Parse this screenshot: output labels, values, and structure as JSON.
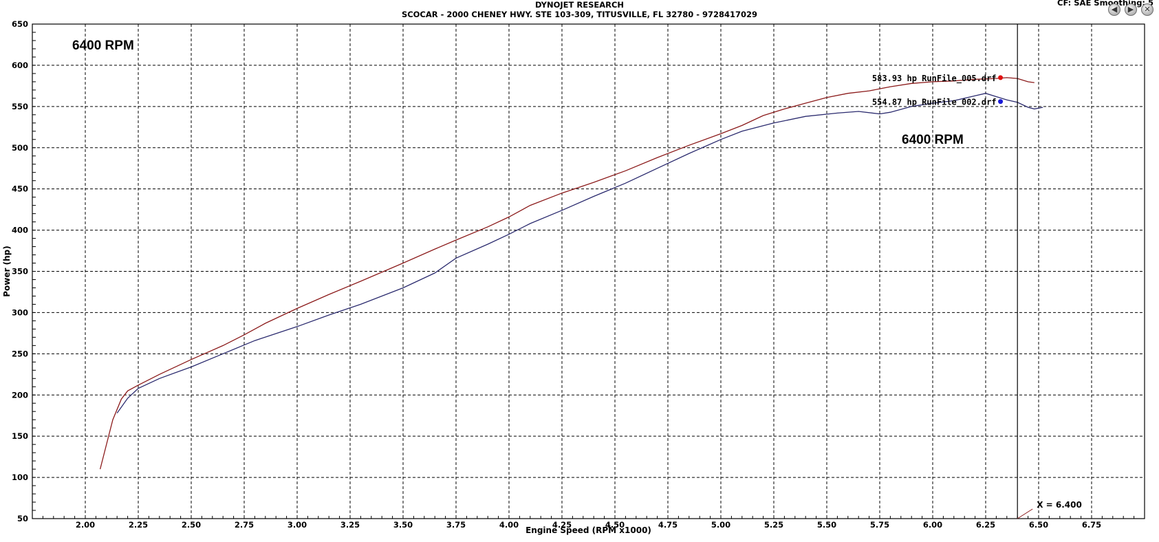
{
  "header": {
    "title": "DYNOJET RESEARCH",
    "subtitle": "SCOCAR - 2000 CHENEY HWY. STE 103-309, TITUSVILLE, FL 32780 - 9728417029",
    "cf_info": "CF: SAE  Smoothing: 5"
  },
  "nav": {
    "back_icon": "back-arrow-icon",
    "forward_icon": "forward-arrow-icon",
    "close_icon": "close-icon",
    "back_glyph": "◀",
    "forward_glyph": "▶",
    "close_glyph": "✕"
  },
  "chart_data": {
    "type": "line",
    "title": "DYNOJET RESEARCH",
    "subtitle": "SCOCAR - 2000 CHENEY HWY. STE 103-309, TITUSVILLE, FL 32780 - 9728417029",
    "xlabel": "Engine Speed (RPM x1000)",
    "ylabel": "Power (hp)",
    "xlim": [
      1.75,
      7.0
    ],
    "ylim": [
      50,
      650
    ],
    "grid": true,
    "x_ticks": [
      "2.00",
      "2.25",
      "2.50",
      "2.75",
      "3.00",
      "3.25",
      "3.50",
      "3.75",
      "4.00",
      "4.25",
      "4.50",
      "4.75",
      "5.00",
      "5.25",
      "5.50",
      "5.75",
      "6.00",
      "6.25",
      "6.50",
      "6.75"
    ],
    "x_tick_values": [
      2.0,
      2.25,
      2.5,
      2.75,
      3.0,
      3.25,
      3.5,
      3.75,
      4.0,
      4.25,
      4.5,
      4.75,
      5.0,
      5.25,
      5.5,
      5.75,
      6.0,
      6.25,
      6.5,
      6.75
    ],
    "y_ticks": [
      "650",
      "600",
      "550",
      "500",
      "450",
      "400",
      "350",
      "300",
      "250",
      "200",
      "150",
      "100",
      "50"
    ],
    "y_tick_values": [
      650,
      600,
      550,
      500,
      450,
      400,
      350,
      300,
      250,
      200,
      150,
      100,
      50
    ],
    "annotations": [
      {
        "text": "6400 RPM",
        "position": "top-left"
      },
      {
        "text": "6400 RPM",
        "position": "near-peak"
      }
    ],
    "cursor": {
      "x": 6.4,
      "label": "X = 6.400"
    },
    "series": [
      {
        "name": "RunFile_005.drf",
        "color": "#8b1a1a",
        "marker_color": "#e01010",
        "legend_label": "583.93 hp RunFile_005.drf",
        "marker_x": 6.32,
        "marker_y": 585,
        "x": [
          2.07,
          2.1,
          2.13,
          2.17,
          2.2,
          2.25,
          2.35,
          2.5,
          2.65,
          2.75,
          2.85,
          3.0,
          3.15,
          3.3,
          3.5,
          3.65,
          3.75,
          3.9,
          4.0,
          4.1,
          4.25,
          4.4,
          4.55,
          4.7,
          4.85,
          5.0,
          5.1,
          5.2,
          5.3,
          5.4,
          5.5,
          5.6,
          5.7,
          5.8,
          5.9,
          6.0,
          6.1,
          6.2,
          6.3,
          6.35,
          6.4,
          6.45,
          6.48
        ],
        "y": [
          110,
          140,
          170,
          195,
          205,
          212,
          225,
          243,
          260,
          273,
          287,
          305,
          322,
          338,
          360,
          377,
          388,
          404,
          416,
          430,
          445,
          458,
          472,
          488,
          503,
          517,
          527,
          539,
          547,
          554,
          561,
          566,
          569,
          574,
          578,
          580,
          581,
          583,
          584,
          585,
          584,
          580,
          579
        ]
      },
      {
        "name": "RunFile_002.drf",
        "color": "#2a2a6e",
        "marker_color": "#1a1ad8",
        "legend_label": "554.87 hp RunFile_002.drf",
        "marker_x": 6.32,
        "marker_y": 556,
        "x": [
          2.15,
          2.2,
          2.25,
          2.35,
          2.5,
          2.65,
          2.8,
          3.0,
          3.15,
          3.3,
          3.5,
          3.65,
          3.75,
          3.9,
          4.0,
          4.1,
          4.25,
          4.4,
          4.55,
          4.7,
          4.85,
          5.0,
          5.1,
          5.25,
          5.4,
          5.55,
          5.65,
          5.75,
          5.8,
          5.9,
          6.0,
          6.1,
          6.2,
          6.25,
          6.3,
          6.35,
          6.4,
          6.45,
          6.48,
          6.52
        ],
        "y": [
          178,
          196,
          208,
          220,
          234,
          250,
          266,
          283,
          297,
          310,
          330,
          348,
          366,
          383,
          395,
          408,
          424,
          441,
          457,
          475,
          493,
          510,
          520,
          530,
          538,
          542,
          544,
          541,
          543,
          550,
          554,
          557,
          563,
          566,
          562,
          558,
          555,
          549,
          547,
          549
        ]
      }
    ]
  }
}
